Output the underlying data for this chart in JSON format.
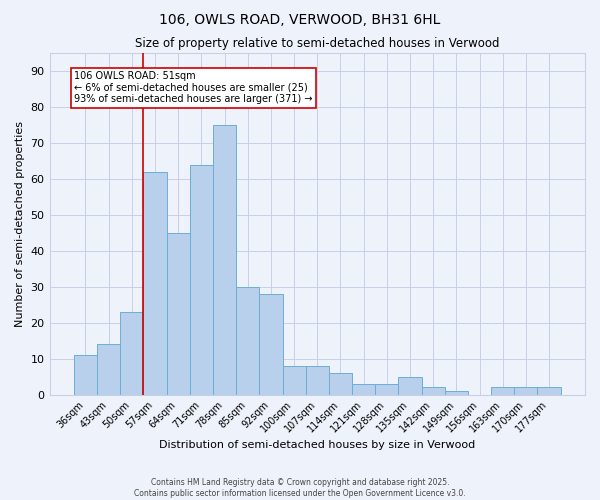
{
  "title1": "106, OWLS ROAD, VERWOOD, BH31 6HL",
  "title2": "Size of property relative to semi-detached houses in Verwood",
  "xlabel": "Distribution of semi-detached houses by size in Verwood",
  "ylabel": "Number of semi-detached properties",
  "categories": [
    "36sqm",
    "43sqm",
    "50sqm",
    "57sqm",
    "64sqm",
    "71sqm",
    "78sqm",
    "85sqm",
    "92sqm",
    "100sqm",
    "107sqm",
    "114sqm",
    "121sqm",
    "128sqm",
    "135sqm",
    "142sqm",
    "149sqm",
    "156sqm",
    "163sqm",
    "170sqm",
    "177sqm"
  ],
  "values": [
    11,
    14,
    23,
    62,
    45,
    64,
    75,
    30,
    28,
    8,
    8,
    6,
    3,
    3,
    5,
    2,
    1,
    0,
    2,
    2,
    2
  ],
  "bar_color": "#b8d0eb",
  "bar_edge_color": "#6baed6",
  "background_color": "#eef2fa",
  "grid_color": "#c8d0e8",
  "vline_color": "#cc0000",
  "annotation_line1": "106 OWLS ROAD: 51sqm",
  "annotation_line2": "← 6% of semi-detached houses are smaller (25)",
  "annotation_line3": "93% of semi-detached houses are larger (371) →",
  "annotation_box_color": "#ffffff",
  "annotation_box_edge": "#cc0000",
  "ylim": [
    0,
    95
  ],
  "yticks": [
    0,
    10,
    20,
    30,
    40,
    50,
    60,
    70,
    80,
    90
  ],
  "footer1": "Contains HM Land Registry data © Crown copyright and database right 2025.",
  "footer2": "Contains public sector information licensed under the Open Government Licence v3.0."
}
